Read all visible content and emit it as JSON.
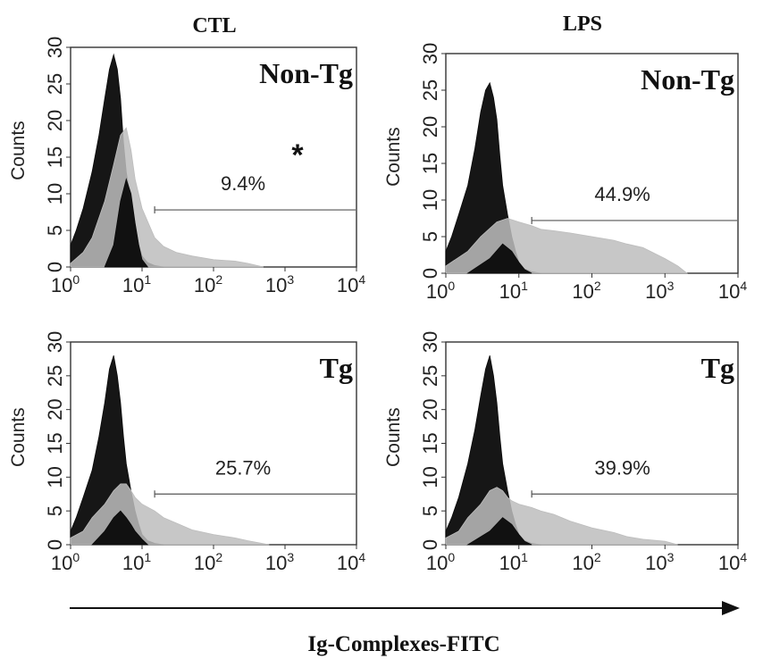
{
  "figure": {
    "column_titles": [
      "CTL",
      "LPS"
    ],
    "x_axis_label": "Ig-Complexes-FITC",
    "annotation": "*"
  },
  "chart_data": [
    {
      "type": "area",
      "column": "CTL",
      "group": "Non-Tg",
      "panel_label": "Non-Tg",
      "gate_percent": "9.4%",
      "ylabel": "Counts",
      "xlabel": "",
      "x_scale": "log",
      "xlim": [
        1,
        10000
      ],
      "ylim": [
        0,
        30
      ],
      "x_ticks": [
        "0",
        "1",
        "2",
        "3",
        "4"
      ],
      "x_tick_base": "10",
      "y_ticks": [
        "0",
        "5",
        "10",
        "15",
        "20",
        "25",
        "30"
      ],
      "gate_range": [
        15,
        10000
      ],
      "gate_level": 7.8,
      "series": [
        {
          "color": "#0a0a0a",
          "x": [
            1,
            1.2,
            1.5,
            2,
            2.5,
            3,
            3.5,
            4,
            4.5,
            5,
            5.5,
            6,
            7,
            8,
            9,
            10,
            12,
            15,
            20
          ],
          "y": [
            3,
            5,
            8,
            13,
            18,
            23,
            27,
            29,
            27,
            23,
            17,
            13,
            9,
            6,
            3,
            1.5,
            0.6,
            0.2,
            0
          ]
        },
        {
          "color": "#bdbdbd",
          "x": [
            1,
            1.5,
            2,
            3,
            4,
            5,
            6,
            7,
            8,
            10,
            15,
            20,
            30,
            50,
            100,
            200,
            300,
            500
          ],
          "y": [
            0.5,
            2,
            4,
            9,
            14,
            18,
            19,
            16,
            12,
            8,
            4,
            2.8,
            2,
            1.5,
            1,
            0.8,
            0.5,
            0
          ]
        },
        {
          "color": "#0a0a0a",
          "x": [
            3,
            4,
            5,
            6,
            7,
            8,
            9,
            10,
            12
          ],
          "y": [
            0,
            3,
            9,
            12,
            10,
            6,
            3,
            1,
            0
          ]
        }
      ]
    },
    {
      "type": "area",
      "column": "LPS",
      "group": "Non-Tg",
      "panel_label": "Non-Tg",
      "gate_percent": "44.9%",
      "ylabel": "Counts",
      "xlabel": "",
      "x_scale": "log",
      "xlim": [
        1,
        10000
      ],
      "ylim": [
        0,
        30
      ],
      "x_ticks": [
        "0",
        "1",
        "2",
        "3",
        "4"
      ],
      "x_tick_base": "10",
      "y_ticks": [
        "0",
        "5",
        "10",
        "15",
        "20",
        "25",
        "30"
      ],
      "gate_range": [
        15,
        10000
      ],
      "gate_level": 7.2,
      "series": [
        {
          "color": "#0a0a0a",
          "x": [
            1,
            1.2,
            1.5,
            2,
            2.5,
            3,
            3.5,
            4,
            4.5,
            5,
            5.5,
            6,
            7,
            8,
            9,
            10,
            12,
            15,
            20
          ],
          "y": [
            3,
            5,
            8,
            12,
            17,
            22,
            25,
            26,
            24,
            21,
            16,
            12,
            8,
            5,
            3,
            1.5,
            0.6,
            0.2,
            0
          ]
        },
        {
          "color": "#bdbdbd",
          "x": [
            1,
            2,
            3,
            5,
            7,
            10,
            15,
            20,
            30,
            50,
            100,
            200,
            300,
            500,
            1000,
            1500,
            2000
          ],
          "y": [
            1,
            3,
            5,
            7,
            7.5,
            7,
            6.5,
            6,
            5.8,
            5.5,
            5,
            4.5,
            4,
            3.5,
            2,
            1,
            0
          ]
        },
        {
          "color": "#0a0a0a",
          "x": [
            2,
            4,
            6,
            8,
            10,
            12,
            15
          ],
          "y": [
            0,
            2,
            4,
            3,
            1.5,
            0.5,
            0
          ]
        }
      ]
    },
    {
      "type": "area",
      "column": "CTL",
      "group": "Tg",
      "panel_label": "Tg",
      "gate_percent": "25.7%",
      "ylabel": "Counts",
      "xlabel": "",
      "x_scale": "log",
      "xlim": [
        1,
        10000
      ],
      "ylim": [
        0,
        30
      ],
      "x_ticks": [
        "0",
        "1",
        "2",
        "3",
        "4"
      ],
      "x_tick_base": "10",
      "y_ticks": [
        "0",
        "5",
        "10",
        "15",
        "20",
        "25",
        "30"
      ],
      "gate_range": [
        15,
        10000
      ],
      "gate_level": 7.5,
      "series": [
        {
          "color": "#0a0a0a",
          "x": [
            1,
            1.2,
            1.5,
            2,
            2.5,
            3,
            3.5,
            4,
            4.5,
            5,
            5.5,
            6,
            7,
            8,
            9,
            10,
            12,
            15,
            20
          ],
          "y": [
            2,
            4,
            7,
            11,
            16,
            21,
            26,
            28,
            25,
            21,
            16,
            12,
            8,
            5,
            3,
            1.5,
            0.6,
            0.2,
            0
          ]
        },
        {
          "color": "#bdbdbd",
          "x": [
            1,
            1.5,
            2,
            3,
            4,
            5,
            6,
            7,
            8,
            10,
            15,
            20,
            30,
            50,
            100,
            200,
            300,
            600
          ],
          "y": [
            1,
            2,
            4,
            6,
            8,
            9,
            9,
            8,
            7,
            6,
            5,
            4,
            3.2,
            2.2,
            1.5,
            1,
            0.6,
            0
          ]
        },
        {
          "color": "#0a0a0a",
          "x": [
            2,
            3,
            4,
            5,
            6,
            7,
            8,
            10,
            12
          ],
          "y": [
            0,
            2,
            4,
            5,
            4,
            3,
            2,
            0.8,
            0
          ]
        }
      ]
    },
    {
      "type": "area",
      "column": "LPS",
      "group": "Tg",
      "panel_label": "Tg",
      "gate_percent": "39.9%",
      "ylabel": "Counts",
      "xlabel": "",
      "x_scale": "log",
      "xlim": [
        1,
        10000
      ],
      "ylim": [
        0,
        30
      ],
      "x_ticks": [
        "0",
        "1",
        "2",
        "3",
        "4"
      ],
      "x_tick_base": "10",
      "y_ticks": [
        "0",
        "5",
        "10",
        "15",
        "20",
        "25",
        "30"
      ],
      "gate_range": [
        15,
        10000
      ],
      "gate_level": 7.5,
      "series": [
        {
          "color": "#0a0a0a",
          "x": [
            1,
            1.2,
            1.5,
            2,
            2.5,
            3,
            3.5,
            4,
            4.5,
            5,
            5.5,
            6,
            7,
            8,
            9,
            10,
            12,
            15,
            20
          ],
          "y": [
            2,
            4,
            7,
            12,
            17,
            22,
            26,
            28,
            25,
            21,
            16,
            12,
            8,
            5,
            3,
            1.5,
            0.6,
            0.2,
            0
          ]
        },
        {
          "color": "#bdbdbd",
          "x": [
            1,
            1.5,
            2,
            3,
            4,
            5,
            6,
            7,
            8,
            10,
            15,
            20,
            30,
            50,
            100,
            200,
            300,
            500,
            1000,
            1500
          ],
          "y": [
            1,
            2,
            4,
            6,
            8,
            8.5,
            8,
            7,
            6.5,
            6,
            5.5,
            5,
            4.5,
            3.5,
            2.5,
            1.8,
            1.2,
            0.8,
            0.5,
            0
          ]
        },
        {
          "color": "#0a0a0a",
          "x": [
            2,
            4,
            6,
            8,
            10,
            12,
            15
          ],
          "y": [
            0,
            2,
            4,
            3,
            1.5,
            0.5,
            0
          ]
        }
      ]
    }
  ]
}
